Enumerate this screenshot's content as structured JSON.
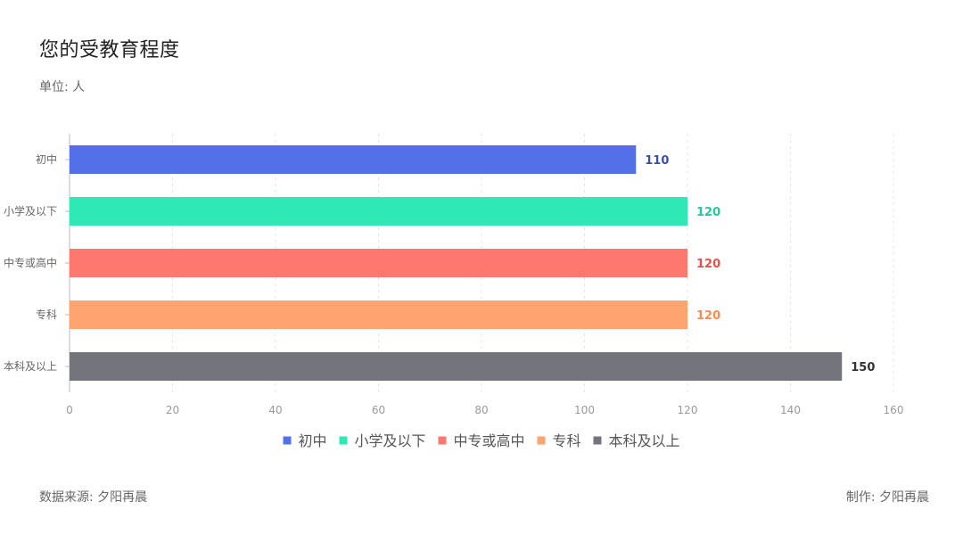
{
  "header": {
    "title": "您的受教育程度",
    "subtitle": "单位: 人"
  },
  "footer": {
    "source": "数据来源: 夕阳再晨",
    "author": "制作: 夕阳再晨"
  },
  "chart_data": {
    "type": "bar",
    "orientation": "horizontal",
    "categories": [
      "初中",
      "小学及以下",
      "中专或高中",
      "专科",
      "本科及以上"
    ],
    "values": [
      110,
      120,
      120,
      120,
      150
    ],
    "colors": [
      "#5470e8",
      "#2ee8b6",
      "#ff7870",
      "#ffa470",
      "#74747c"
    ],
    "value_label_colors": [
      "#3b4ea8",
      "#22c99c",
      "#e8504a",
      "#ff8a50",
      "#333333"
    ],
    "xlim": [
      0,
      160
    ],
    "x_ticks": [
      0,
      20,
      40,
      60,
      80,
      100,
      120,
      140,
      160
    ],
    "grid": "vertical-dashed",
    "legend": {
      "placement": "bottom-center",
      "entries": [
        "初中",
        "小学及以下",
        "中专或高中",
        "专科",
        "本科及以上"
      ]
    },
    "title": "您的受教育程度",
    "unit": "单位: 人"
  }
}
